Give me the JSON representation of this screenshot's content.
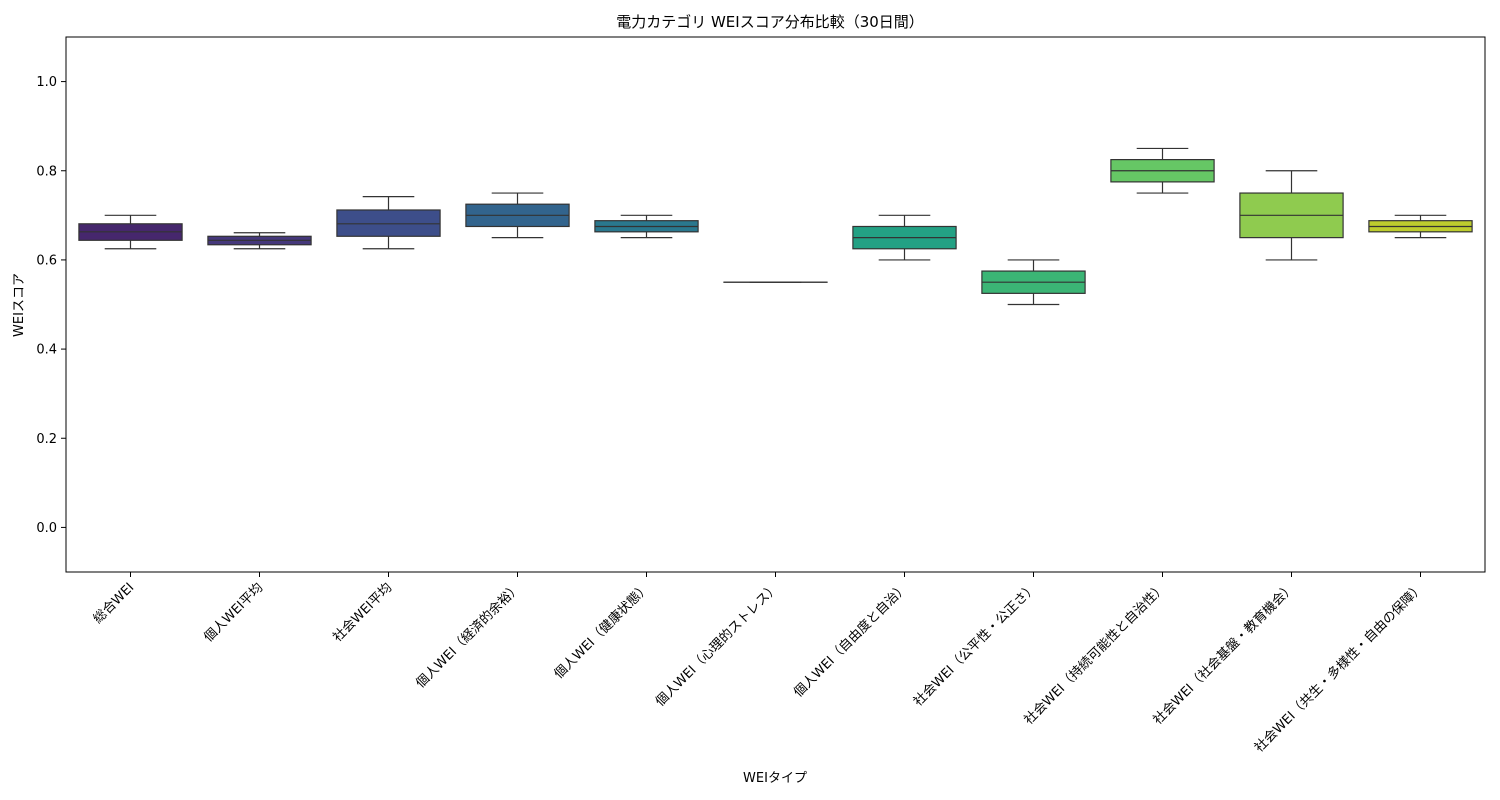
{
  "chart_data": {
    "type": "box",
    "title": "電力カテゴリ WEIスコア分布比較（30日間）",
    "xlabel": "WEIタイプ",
    "ylabel": "WEIスコア",
    "ylim": [
      -0.1,
      1.1
    ],
    "yticks": [
      "0.0",
      "0.2",
      "0.4",
      "0.6",
      "0.8",
      "1.0"
    ],
    "grid": false,
    "categories": [
      "総合WEI",
      "個人WEI平均",
      "社会WEI平均",
      "個人WEI（経済的余裕）",
      "個人WEI（健康状態）",
      "個人WEI（心理的ストレス）",
      "個人WEI（自由度と自治）",
      "社会WEI（公平性・公正さ）",
      "社会WEI（持続可能性と自治性）",
      "社会WEI（社会基盤・教育機会）",
      "社会WEI（共生・多様性・自由の保障）"
    ],
    "boxes": [
      {
        "whisker_low": 0.625,
        "q1": 0.644,
        "median": 0.663,
        "q3": 0.681,
        "whisker_high": 0.7,
        "color": "#46276d"
      },
      {
        "whisker_low": 0.625,
        "q1": 0.634,
        "median": 0.644,
        "q3": 0.653,
        "whisker_high": 0.661,
        "color": "#45387b"
      },
      {
        "whisker_low": 0.625,
        "q1": 0.653,
        "median": 0.681,
        "q3": 0.712,
        "whisker_high": 0.742,
        "color": "#3d4e8a"
      },
      {
        "whisker_low": 0.65,
        "q1": 0.675,
        "median": 0.7,
        "q3": 0.725,
        "whisker_high": 0.75,
        "color": "#32648d"
      },
      {
        "whisker_low": 0.65,
        "q1": 0.663,
        "median": 0.675,
        "q3": 0.688,
        "whisker_high": 0.7,
        "color": "#2a788e"
      },
      {
        "whisker_low": 0.55,
        "q1": 0.55,
        "median": 0.55,
        "q3": 0.55,
        "whisker_high": 0.55,
        "color": "#21908c"
      },
      {
        "whisker_low": 0.6,
        "q1": 0.625,
        "median": 0.65,
        "q3": 0.675,
        "whisker_high": 0.7,
        "color": "#23a184"
      },
      {
        "whisker_low": 0.5,
        "q1": 0.525,
        "median": 0.55,
        "q3": 0.575,
        "whisker_high": 0.6,
        "color": "#3bb575"
      },
      {
        "whisker_low": 0.75,
        "q1": 0.775,
        "median": 0.8,
        "q3": 0.825,
        "whisker_high": 0.85,
        "color": "#66c765"
      },
      {
        "whisker_low": 0.6,
        "q1": 0.65,
        "median": 0.7,
        "q3": 0.75,
        "whisker_high": 0.8,
        "color": "#8fcb4f"
      },
      {
        "whisker_low": 0.65,
        "q1": 0.663,
        "median": 0.675,
        "q3": 0.688,
        "whisker_high": 0.7,
        "color": "#bdcd2e"
      }
    ]
  }
}
